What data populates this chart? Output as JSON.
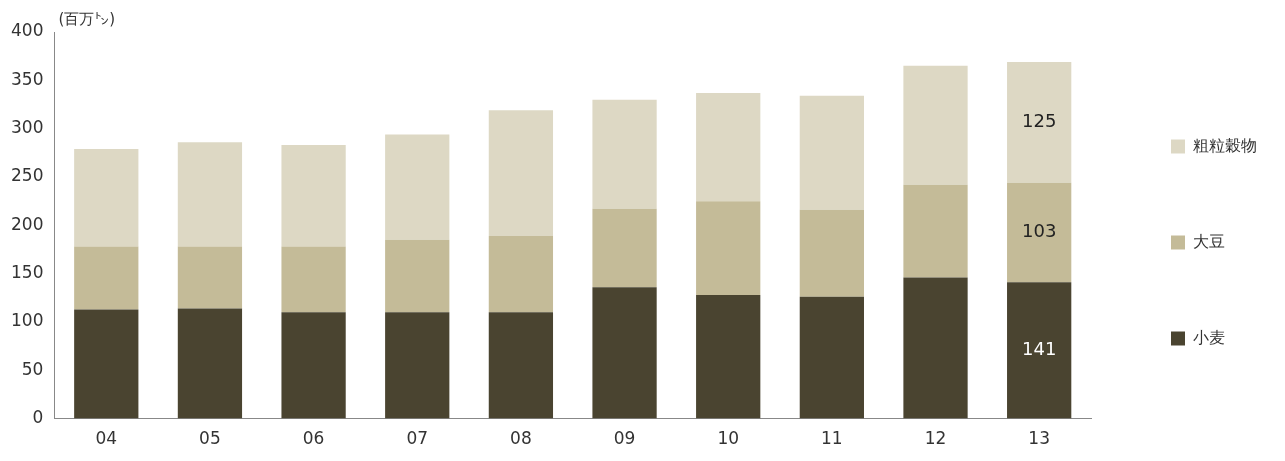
{
  "chart_data": {
    "type": "bar",
    "ylabel": "(百万㌧)",
    "categories": [
      "04",
      "05",
      "06",
      "07",
      "08",
      "09",
      "10",
      "11",
      "12",
      "13"
    ],
    "stacked": true,
    "ylim": [
      0,
      400
    ],
    "yticks": [
      0,
      50,
      100,
      150,
      200,
      250,
      300,
      350,
      400
    ],
    "grid": false,
    "legend": "right",
    "series": [
      {
        "name": "小麦",
        "color": "#4a4430",
        "values": [
          113,
          114,
          110,
          110,
          110,
          136,
          128,
          126,
          146,
          141
        ],
        "value_labels": [
          null,
          null,
          null,
          null,
          null,
          null,
          null,
          null,
          null,
          "141"
        ]
      },
      {
        "name": "大豆",
        "color": "#c4bb98",
        "values": [
          65,
          64,
          68,
          75,
          79,
          81,
          97,
          90,
          96,
          103
        ],
        "value_labels": [
          null,
          null,
          null,
          null,
          null,
          null,
          null,
          null,
          null,
          "103"
        ]
      },
      {
        "name": "粗粒穀物",
        "color": "#ddd8c4",
        "values": [
          101,
          108,
          105,
          109,
          130,
          113,
          112,
          118,
          123,
          125
        ],
        "value_labels": [
          null,
          null,
          null,
          null,
          null,
          null,
          null,
          null,
          null,
          "125"
        ]
      }
    ]
  }
}
